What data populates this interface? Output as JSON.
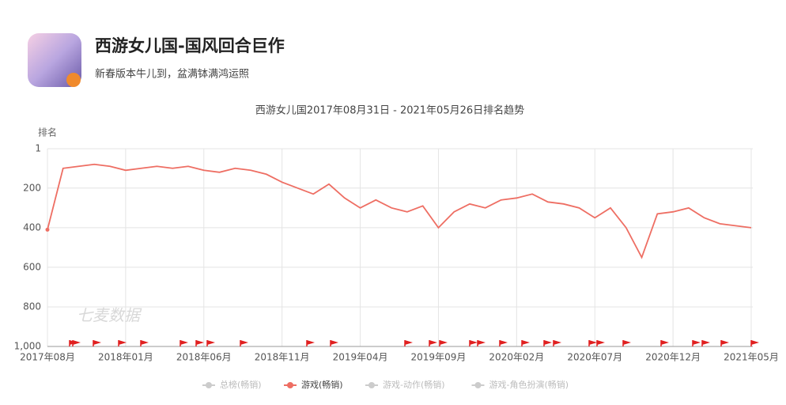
{
  "header": {
    "title": "西游女儿国-国风回合巨作",
    "subtitle": "新春版本牛儿到，盆满钵满鸿运照"
  },
  "chart_data": {
    "type": "line",
    "title": "西游女儿国2017年08月31日 - 2021年05月26日排名趋势",
    "y_label": "排名",
    "watermark": "七麦数据",
    "x": [
      "2017年08月",
      "2017年09月",
      "2017年10月",
      "2017年11月",
      "2017年12月",
      "2018年01月",
      "2018年02月",
      "2018年03月",
      "2018年04月",
      "2018年05月",
      "2018年06月",
      "2018年07月",
      "2018年08月",
      "2018年09月",
      "2018年10月",
      "2018年11月",
      "2018年12月",
      "2019年01月",
      "2019年02月",
      "2019年03月",
      "2019年04月",
      "2019年05月",
      "2019年06月",
      "2019年07月",
      "2019年08月",
      "2019年09月",
      "2019年10月",
      "2019年11月",
      "2019年12月",
      "2020年01月",
      "2020年02月",
      "2020年03月",
      "2020年04月",
      "2020年05月",
      "2020年06月",
      "2020年07月",
      "2020年08月",
      "2020年09月",
      "2020年10月",
      "2020年11月",
      "2020年12月",
      "2021年01月",
      "2021年02月",
      "2021年03月",
      "2021年04月",
      "2021年05月"
    ],
    "xticks": [
      "2017年08月",
      "2018年01月",
      "2018年06月",
      "2018年11月",
      "2019年04月",
      "2019年09月",
      "2020年02月",
      "2020年07月",
      "2020年12月",
      "2021年05月"
    ],
    "series": [
      {
        "name": "总榜(畅销)",
        "color": "#cccccc",
        "visible": false
      },
      {
        "name": "游戏(畅销)",
        "color": "#ee6e63",
        "visible": true,
        "values": [
          410,
          100,
          90,
          80,
          90,
          110,
          100,
          90,
          100,
          90,
          110,
          120,
          100,
          110,
          130,
          170,
          200,
          230,
          180,
          250,
          300,
          260,
          300,
          320,
          290,
          400,
          320,
          280,
          300,
          260,
          250,
          230,
          270,
          280,
          300,
          350,
          300,
          400,
          550,
          330,
          320,
          300,
          350,
          380,
          390,
          400
        ]
      },
      {
        "name": "游戏-动作(畅销)",
        "color": "#cccccc",
        "visible": false
      },
      {
        "name": "游戏-角色扮演(畅销)",
        "color": "#cccccc",
        "visible": false
      }
    ],
    "ylim": [
      1000,
      1
    ],
    "yticks": [
      1,
      200,
      400,
      600,
      800,
      {
        "value": 1000,
        "label": "1,000"
      }
    ],
    "grid": true
  }
}
